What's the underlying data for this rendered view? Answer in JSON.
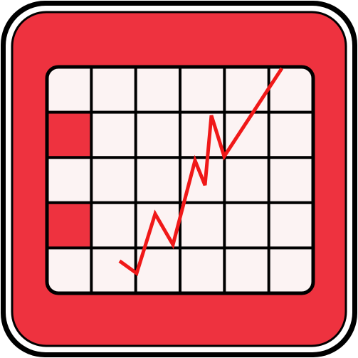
{
  "icon": {
    "name": "stock-chart-app-icon",
    "colors": {
      "tile_fill": "#EE323F",
      "tile_border": "#000000",
      "tile_inner_ring": "#FFFFFF",
      "grid_fill": "#FCF3F3",
      "grid_lines": "#000000",
      "highlight_cells": "#EE323F",
      "trend_line": "#F01818"
    },
    "grid": {
      "columns": 6,
      "rows": 5,
      "highlighted_cells": [
        {
          "row": 1,
          "col": 0
        },
        {
          "row": 3,
          "col": 0
        }
      ]
    },
    "trend": {
      "direction": "up",
      "values": [
        0.06,
        0.0,
        0.29,
        0.14,
        0.55,
        0.43,
        0.77,
        0.57,
        1.0
      ]
    }
  }
}
